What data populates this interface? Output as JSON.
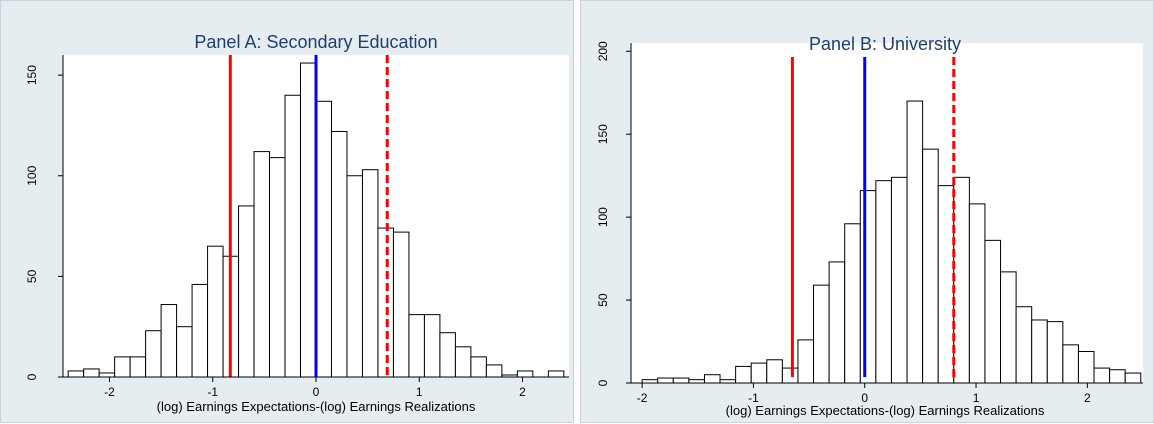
{
  "chart_data": [
    {
      "type": "bar",
      "title": "Panel A: Secondary Education",
      "xlabel": "(log) Earnings Expectations-(log) Earnings Realizations",
      "ylabel": "",
      "xlim": [
        -2.45,
        2.45
      ],
      "ylim": [
        0,
        160
      ],
      "xticks": [
        -2,
        -1,
        0,
        1,
        2
      ],
      "yticks": [
        0,
        50,
        100,
        150
      ],
      "bin_width": 0.15,
      "bins_start": [
        -2.4,
        -2.25,
        -2.1,
        -1.95,
        -1.8,
        -1.65,
        -1.5,
        -1.35,
        -1.2,
        -1.05,
        -0.9,
        -0.75,
        -0.6,
        -0.45,
        -0.3,
        -0.15,
        0.0,
        0.15,
        0.3,
        0.45,
        0.6,
        0.75,
        0.9,
        1.05,
        1.2,
        1.35,
        1.5,
        1.65,
        1.8,
        1.95,
        2.1,
        2.25
      ],
      "values": [
        3,
        4,
        2,
        10,
        10,
        23,
        36,
        25,
        46,
        65,
        60,
        85,
        112,
        109,
        140,
        156,
        137,
        122,
        100,
        103,
        74,
        72,
        31,
        31,
        22,
        15,
        10,
        6,
        1,
        3,
        0,
        3
      ],
      "vlines": [
        {
          "x": -0.83,
          "color": "#ff0000",
          "style": "solid"
        },
        {
          "x": 0.0,
          "color": "#0000ff",
          "style": "solid"
        },
        {
          "x": 0.69,
          "color": "#ff0000",
          "style": "dashed"
        }
      ]
    },
    {
      "type": "bar",
      "title": "Panel B: University",
      "xlabel": "(log) Earnings Expectations-(log) Earnings Realizations",
      "ylabel": "",
      "xlim": [
        -2.1,
        2.5
      ],
      "ylim": [
        0,
        205
      ],
      "xticks": [
        -2,
        -1,
        0,
        1,
        2
      ],
      "yticks": [
        0,
        50,
        100,
        150,
        200
      ],
      "bin_width": 0.14,
      "bins_start": [
        -2.0,
        -1.86,
        -1.72,
        -1.58,
        -1.44,
        -1.3,
        -1.16,
        -1.02,
        -0.88,
        -0.74,
        -0.6,
        -0.46,
        -0.32,
        -0.18,
        -0.04,
        0.1,
        0.24,
        0.38,
        0.52,
        0.66,
        0.8,
        0.94,
        1.08,
        1.22,
        1.36,
        1.5,
        1.64,
        1.78,
        1.92,
        2.06,
        2.2,
        2.34
      ],
      "values": [
        2,
        3,
        3,
        2,
        5,
        2,
        10,
        12,
        14,
        9,
        26,
        59,
        73,
        96,
        116,
        122,
        124,
        170,
        141,
        119,
        124,
        108,
        86,
        67,
        46,
        38,
        37,
        23,
        19,
        9,
        8,
        6
      ],
      "vlines": [
        {
          "x": -0.65,
          "color": "#ff0000",
          "style": "solid"
        },
        {
          "x": 0.0,
          "color": "#0000ff",
          "style": "solid"
        },
        {
          "x": 0.8,
          "color": "#ff0000",
          "style": "dashed"
        }
      ]
    }
  ]
}
